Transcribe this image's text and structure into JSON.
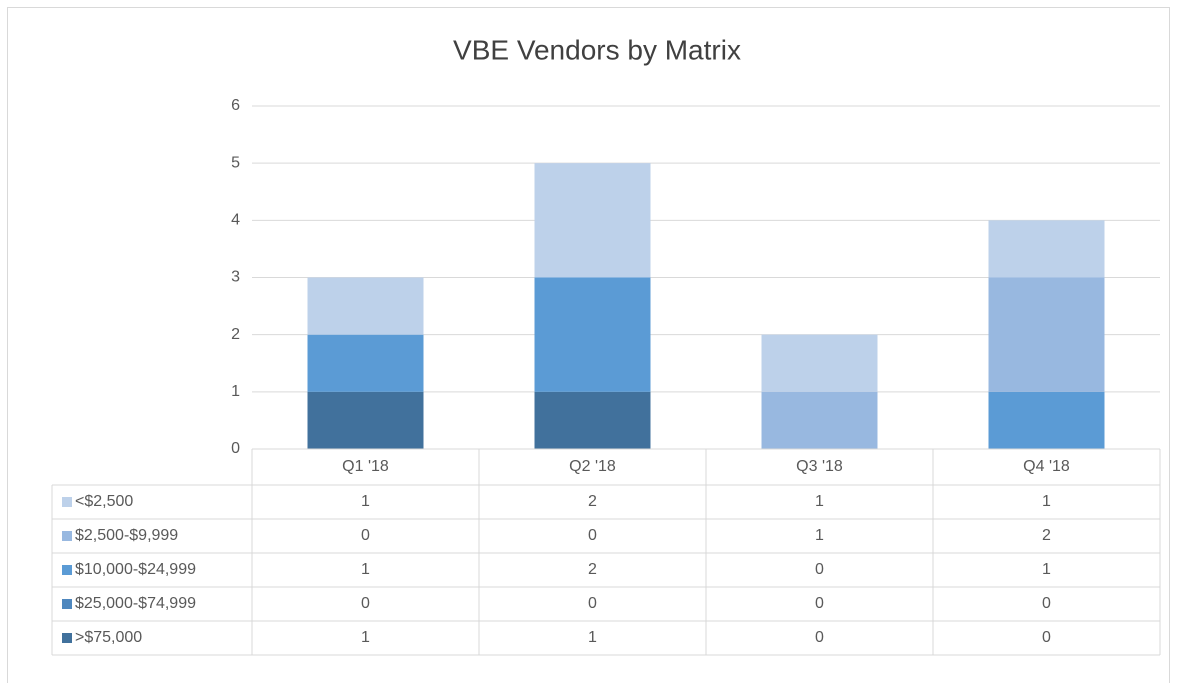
{
  "chart_data": {
    "type": "stacked_bar",
    "title": "VBE Vendors by Matrix",
    "categories": [
      "Q1 '18",
      "Q2 '18",
      "Q3 '18",
      "Q4 '18"
    ],
    "series": [
      {
        "name": "<$2,500",
        "color": "#bdd1ea",
        "values": [
          1,
          2,
          1,
          1
        ]
      },
      {
        "name": "$2,500-$9,999",
        "color": "#98b8e0",
        "values": [
          0,
          0,
          1,
          2
        ]
      },
      {
        "name": "$10,000-$24,999",
        "color": "#5b9bd5",
        "values": [
          1,
          2,
          0,
          1
        ]
      },
      {
        "name": "$25,000-$74,999",
        "color": "#4e87be",
        "values": [
          0,
          0,
          0,
          0
        ]
      },
      {
        "name": ">$75,000",
        "color": "#41719c",
        "values": [
          1,
          1,
          0,
          0
        ]
      }
    ],
    "ylim": [
      0,
      6
    ],
    "yticks": [
      0,
      1,
      2,
      3,
      4,
      5,
      6
    ],
    "grid": true,
    "legend": "data-table"
  }
}
